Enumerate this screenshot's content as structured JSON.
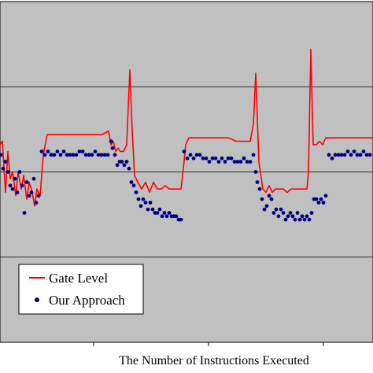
{
  "chart_data": {
    "type": "line",
    "xlabel": "The Number of Instructions Executed",
    "ylabel": "",
    "title": "",
    "grid": true,
    "legend_position": "bottom-left",
    "plot_background": "#C0C0C0",
    "series": [
      {
        "name": "Gate Level",
        "style": "line",
        "color": "#FF0000",
        "x": [
          0,
          3,
          7,
          10,
          13,
          16,
          20,
          23,
          27,
          30,
          34,
          37,
          41,
          44,
          47,
          51,
          55,
          60,
          70,
          80,
          90,
          100,
          110,
          120,
          130,
          138,
          141,
          144,
          147,
          150,
          153,
          157,
          161,
          165,
          168,
          171,
          175,
          180,
          185,
          190,
          195,
          200,
          205,
          210,
          215,
          220,
          225,
          230,
          233,
          236,
          240,
          250,
          260,
          270,
          280,
          290,
          300,
          310,
          318,
          322,
          325,
          329,
          334,
          338,
          342,
          346,
          350,
          355,
          360,
          365,
          370,
          375,
          380,
          385,
          390,
          392,
          395,
          398,
          402,
          406,
          410,
          414,
          418,
          422,
          430,
          440,
          450,
          460,
          470,
          474
        ],
        "y": [
          0.58,
          0.59,
          0.44,
          0.56,
          0.48,
          0.5,
          0.43,
          0.5,
          0.45,
          0.49,
          0.42,
          0.47,
          0.44,
          0.4,
          0.45,
          0.43,
          0.55,
          0.61,
          0.61,
          0.61,
          0.61,
          0.61,
          0.61,
          0.61,
          0.61,
          0.62,
          0.58,
          0.59,
          0.56,
          0.57,
          0.56,
          0.56,
          0.58,
          0.8,
          0.62,
          0.49,
          0.47,
          0.45,
          0.47,
          0.44,
          0.47,
          0.45,
          0.45,
          0.46,
          0.45,
          0.45,
          0.45,
          0.45,
          0.51,
          0.58,
          0.6,
          0.6,
          0.6,
          0.6,
          0.6,
          0.6,
          0.59,
          0.59,
          0.59,
          0.64,
          0.79,
          0.53,
          0.45,
          0.44,
          0.46,
          0.44,
          0.45,
          0.45,
          0.45,
          0.44,
          0.45,
          0.45,
          0.45,
          0.45,
          0.45,
          0.5,
          0.86,
          0.58,
          0.58,
          0.59,
          0.58,
          0.6,
          0.6,
          0.6,
          0.6,
          0.6,
          0.6,
          0.6,
          0.6,
          0.6
        ]
      },
      {
        "name": "Our Approach",
        "style": "markers",
        "color": "#000080",
        "x": [
          1,
          4,
          7,
          10,
          13,
          16,
          19,
          22,
          25,
          28,
          31,
          34,
          37,
          40,
          43,
          46,
          49,
          53,
          57,
          61,
          65,
          69,
          73,
          77,
          81,
          85,
          89,
          93,
          97,
          101,
          105,
          109,
          113,
          117,
          121,
          125,
          129,
          133,
          137,
          141,
          143,
          146,
          149,
          152,
          155,
          158,
          161,
          164,
          167,
          170,
          173,
          176,
          179,
          182,
          185,
          188,
          191,
          194,
          197,
          200,
          203,
          206,
          209,
          212,
          215,
          218,
          221,
          224,
          227,
          230,
          234,
          238,
          242,
          246,
          250,
          254,
          258,
          262,
          266,
          270,
          274,
          278,
          282,
          286,
          290,
          294,
          298,
          302,
          306,
          310,
          314,
          318,
          322,
          325,
          327,
          330,
          333,
          336,
          339,
          342,
          345,
          348,
          351,
          354,
          357,
          360,
          363,
          366,
          369,
          372,
          375,
          378,
          381,
          384,
          387,
          390,
          393,
          396,
          399,
          402,
          405,
          408,
          411,
          414,
          418,
          422,
          426,
          430,
          434,
          438,
          442,
          446,
          450,
          454,
          458,
          462,
          466,
          470
        ],
        "y": [
          0.55,
          0.51,
          0.53,
          0.5,
          0.46,
          0.45,
          0.48,
          0.44,
          0.5,
          0.46,
          0.38,
          0.47,
          0.43,
          0.44,
          0.48,
          0.41,
          0.43,
          0.56,
          0.55,
          0.56,
          0.55,
          0.55,
          0.56,
          0.55,
          0.56,
          0.55,
          0.55,
          0.55,
          0.55,
          0.56,
          0.56,
          0.55,
          0.55,
          0.55,
          0.56,
          0.55,
          0.55,
          0.55,
          0.55,
          0.59,
          0.57,
          0.55,
          0.52,
          0.53,
          0.53,
          0.52,
          0.53,
          0.51,
          0.47,
          0.46,
          0.44,
          0.42,
          0.4,
          0.42,
          0.41,
          0.39,
          0.41,
          0.39,
          0.38,
          0.38,
          0.39,
          0.37,
          0.38,
          0.37,
          0.38,
          0.37,
          0.37,
          0.37,
          0.36,
          0.36,
          0.56,
          0.54,
          0.55,
          0.54,
          0.55,
          0.55,
          0.54,
          0.54,
          0.53,
          0.54,
          0.54,
          0.53,
          0.54,
          0.53,
          0.54,
          0.54,
          0.53,
          0.53,
          0.53,
          0.54,
          0.53,
          0.53,
          0.55,
          0.5,
          0.47,
          0.45,
          0.42,
          0.39,
          0.4,
          0.43,
          0.42,
          0.38,
          0.39,
          0.37,
          0.39,
          0.38,
          0.36,
          0.37,
          0.38,
          0.37,
          0.36,
          0.38,
          0.36,
          0.37,
          0.36,
          0.37,
          0.36,
          0.38,
          0.42,
          0.42,
          0.41,
          0.42,
          0.41,
          0.43,
          0.55,
          0.54,
          0.55,
          0.55,
          0.55,
          0.55,
          0.56,
          0.55,
          0.56,
          0.55,
          0.55,
          0.56,
          0.55,
          0.55
        ]
      }
    ],
    "xlim": [
      0,
      474
    ],
    "ylim": [
      0,
      1
    ]
  }
}
